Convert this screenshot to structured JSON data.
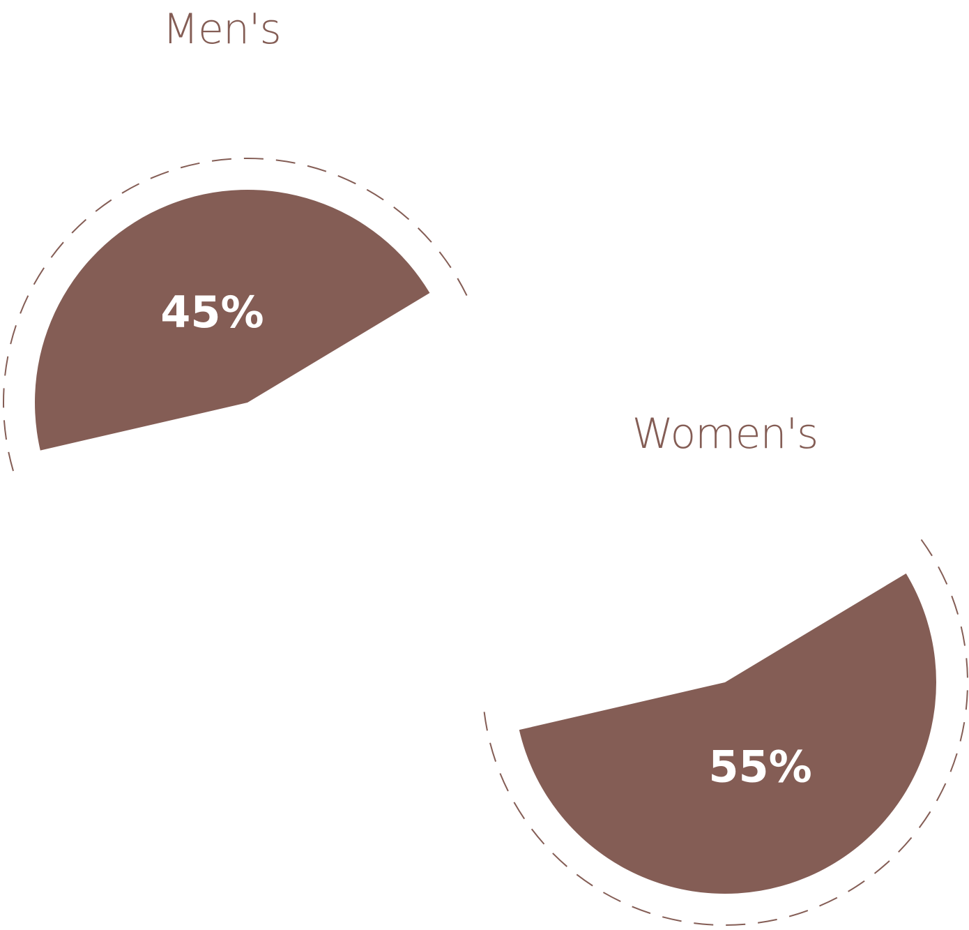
{
  "chart_data": [
    {
      "type": "pie",
      "title": "Men's",
      "values": [
        45
      ],
      "value_labels": [
        "45%"
      ],
      "color": "#845d55"
    },
    {
      "type": "pie",
      "title": "Women's",
      "values": [
        55
      ],
      "value_labels": [
        "55%"
      ],
      "color": "#845d55"
    }
  ]
}
